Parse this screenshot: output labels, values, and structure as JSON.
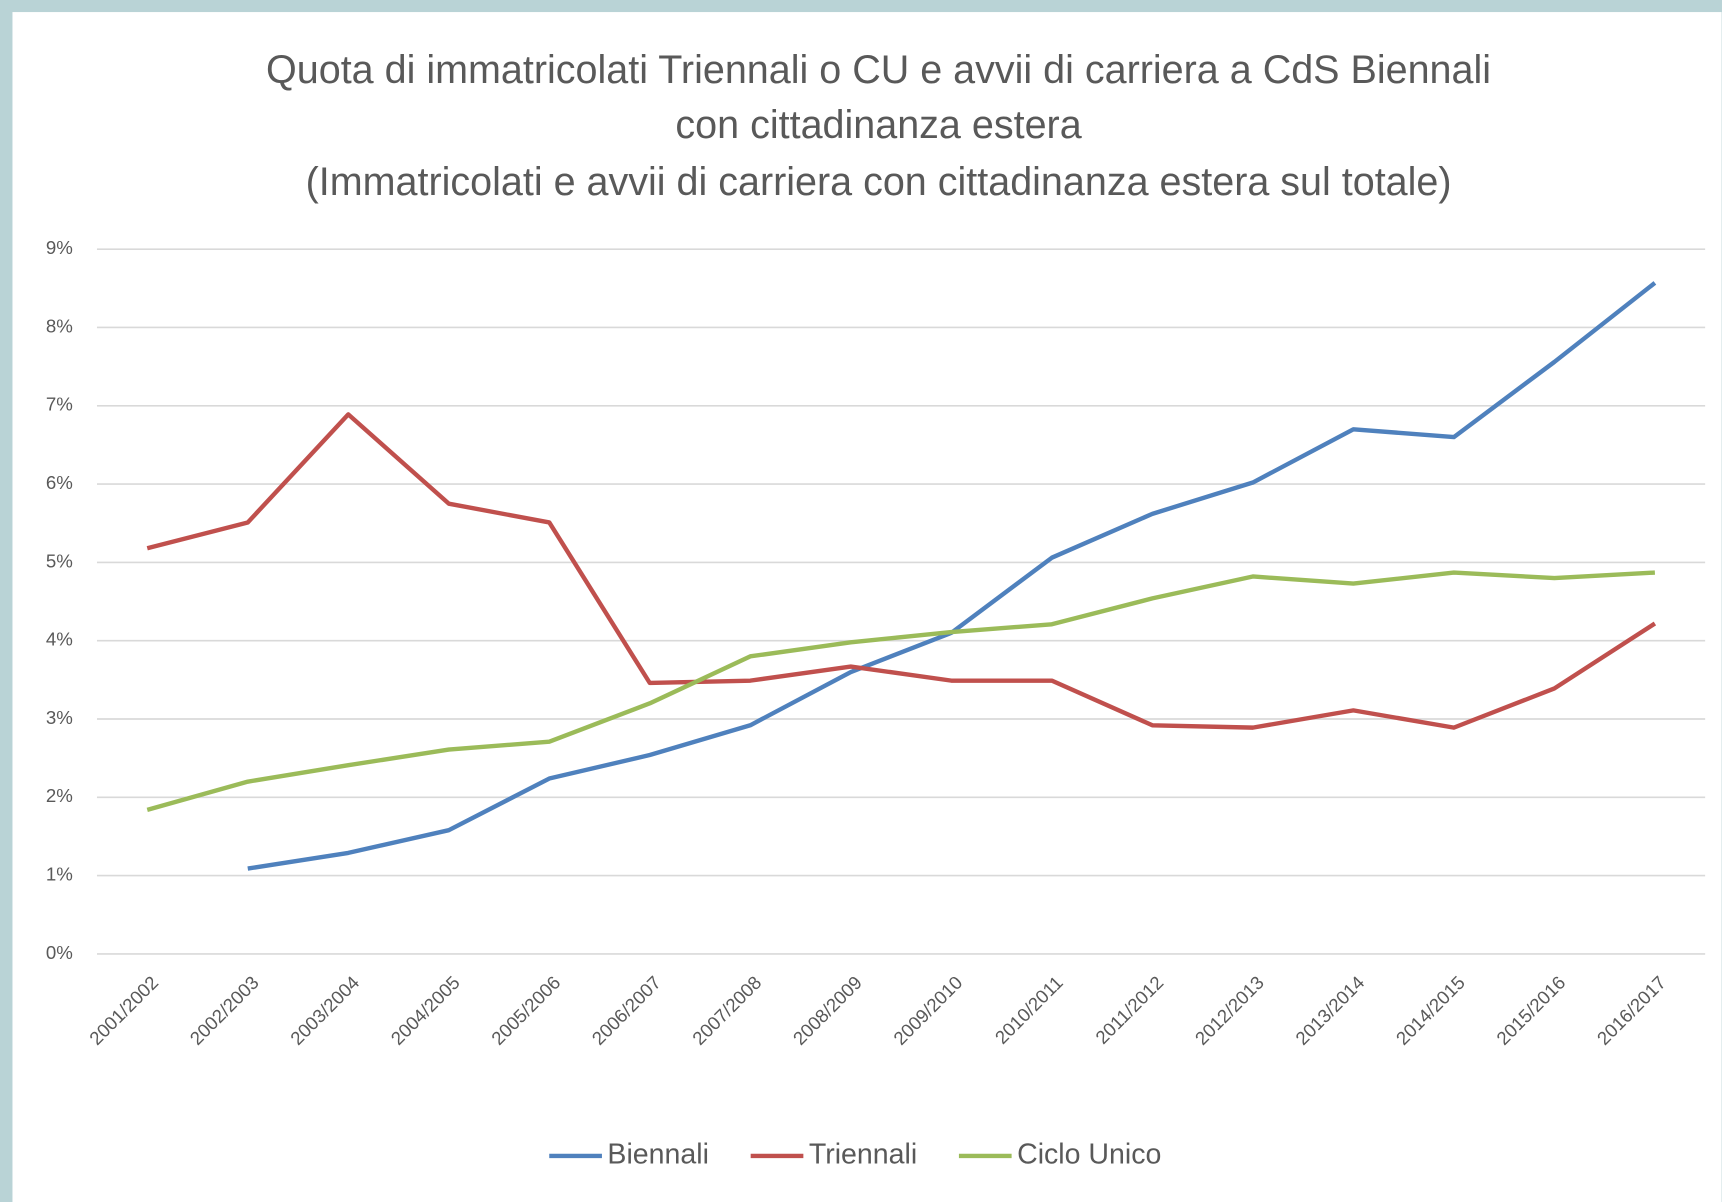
{
  "chart_data": {
    "type": "line",
    "title": [
      "Quota di immatricolati Triennali o CU e avvii di carriera a CdS Biennali",
      "con cittadinanza estera",
      "(Immatricolati e avvii di carriera con cittadinanza estera sul totale)"
    ],
    "categories": [
      "2001/2002",
      "2002/2003",
      "2003/2004",
      "2004/2005",
      "2005/2006",
      "2006/2007",
      "2007/2008",
      "2008/2009",
      "2009/2010",
      "2010/2011",
      "2011/2012",
      "2012/2013",
      "2013/2014",
      "2014/2015",
      "2015/2016",
      "2016/2017"
    ],
    "series": [
      {
        "name": "Biennali",
        "color": "#4f81bd",
        "values": [
          null,
          1.09,
          1.29,
          1.58,
          2.24,
          2.54,
          2.92,
          3.6,
          4.1,
          5.06,
          5.62,
          6.02,
          6.7,
          6.6,
          7.56,
          8.57
        ]
      },
      {
        "name": "Triennali",
        "color": "#c0504d",
        "values": [
          5.18,
          5.51,
          6.89,
          5.75,
          5.51,
          3.46,
          3.49,
          3.67,
          3.49,
          3.49,
          2.92,
          2.89,
          3.11,
          2.89,
          3.39,
          4.22
        ]
      },
      {
        "name": "Ciclo Unico",
        "color": "#9bbb59",
        "values": [
          1.84,
          2.2,
          2.41,
          2.61,
          2.71,
          3.2,
          3.8,
          3.98,
          4.11,
          4.21,
          4.54,
          4.82,
          4.73,
          4.87,
          4.8,
          4.87
        ]
      }
    ],
    "ylim": [
      0,
      9
    ],
    "yticks": [
      {
        "value": 0,
        "label": "0%"
      },
      {
        "value": 1,
        "label": "1%"
      },
      {
        "value": 2,
        "label": "2%"
      },
      {
        "value": 3,
        "label": "3%"
      },
      {
        "value": 4,
        "label": "4%"
      },
      {
        "value": 5,
        "label": "5%"
      },
      {
        "value": 6,
        "label": "6%"
      },
      {
        "value": 7,
        "label": "7%"
      },
      {
        "value": 8,
        "label": "8%"
      },
      {
        "value": 9,
        "label": "9%"
      }
    ],
    "grid": true,
    "legend": "bottom"
  }
}
